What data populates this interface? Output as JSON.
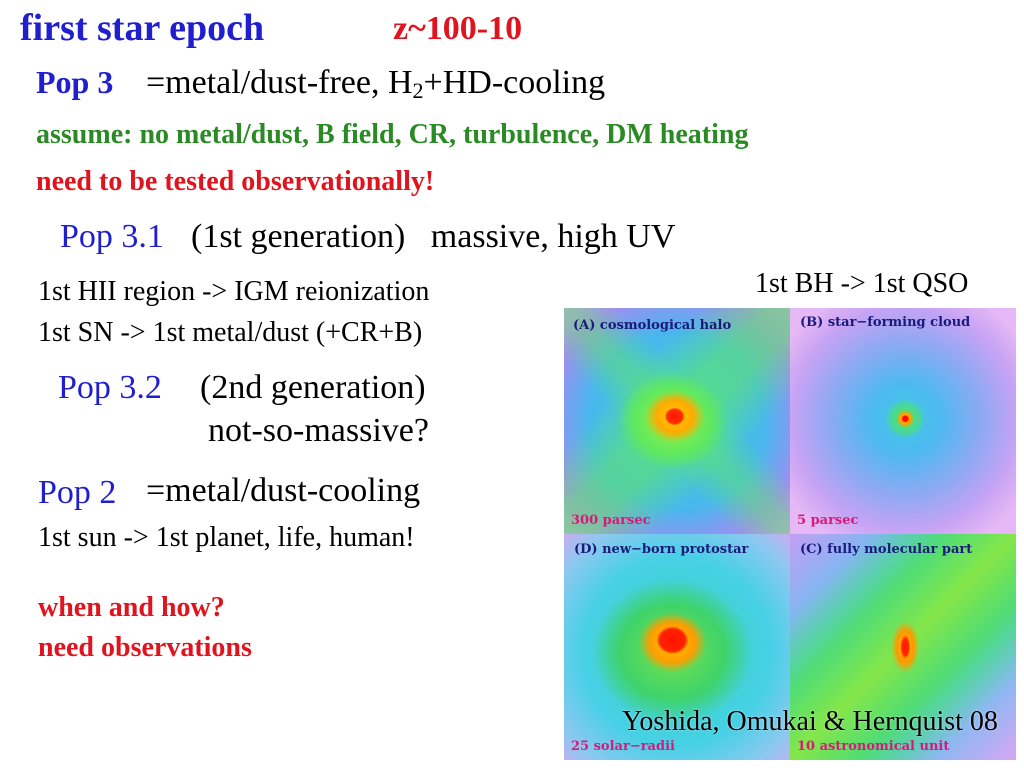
{
  "slide": {
    "title": "first star epoch",
    "redshift": "z~100-10",
    "pop3": {
      "label": "Pop 3",
      "def_prefix": "=metal/dust-free, H",
      "def_sub": "2",
      "def_suffix": "+HD-cooling"
    },
    "assume": "assume: no metal/dust, B field, CR, turbulence, DM heating",
    "tested": "need to be tested observationally!",
    "pop31": {
      "label": "Pop 3.1",
      "desc": "(1st generation)   massive, high UV"
    },
    "hii": "1st HII region -> IGM reionization",
    "sn": "1st SN -> 1st metal/dust (+CR+B)",
    "bh": "1st BH -> 1st QSO",
    "pop32": {
      "label": "Pop 3.2",
      "desc_line1": "(2nd generation)",
      "desc_line2": "not-so-massive?"
    },
    "pop2": {
      "label": "Pop 2",
      "def": "=metal/dust-cooling"
    },
    "sun": "1st sun -> 1st planet, life, human!",
    "when": "when and how?",
    "need_obs": "need observations"
  },
  "figure": {
    "panels": [
      {
        "label": "(A) cosmological halo",
        "scale": "300 parsec"
      },
      {
        "label": "(B) star−forming cloud",
        "scale": "5 parsec"
      },
      {
        "label": "(D) new−born protostar",
        "scale": "25 solar−radii"
      },
      {
        "label": "(C) fully molecular part",
        "scale": "10 astronomical unit"
      }
    ],
    "credit": "Yoshida, Omukai & Hernquist 08"
  },
  "colors": {
    "blue": "#1f1fd0",
    "red": "#e0141e",
    "green": "#2a8a24"
  }
}
